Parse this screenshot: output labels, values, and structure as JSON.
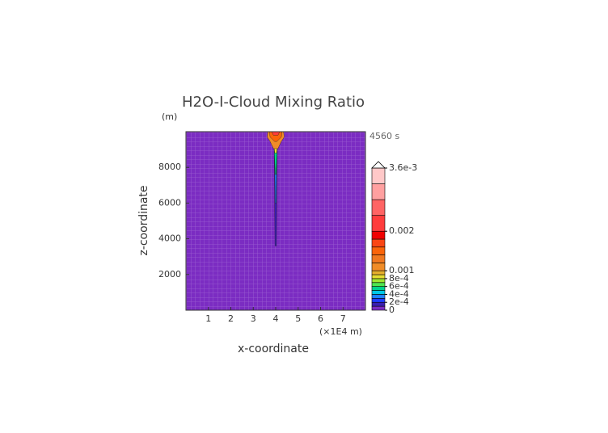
{
  "chart_data": {
    "type": "contour",
    "title": "H2O-I-Cloud Mixing Ratio",
    "x_label": "x-coordinate",
    "y_label": "z-coordinate",
    "x_unit": "(×1E4 m)",
    "y_unit": "(m)",
    "time_label": "4560 s",
    "xlim": [
      0,
      8
    ],
    "xticks": [
      1,
      2,
      3,
      4,
      5,
      6,
      7
    ],
    "ylim": [
      0,
      10000
    ],
    "yticks": [
      2000,
      4000,
      6000,
      8000
    ],
    "background_level": 0,
    "levels": [
      0,
      0.0001,
      0.0002,
      0.0003,
      0.0004,
      0.0005,
      0.0006,
      0.0007,
      0.0008,
      0.0009,
      0.001,
      0.0012,
      0.0014,
      0.0016,
      0.0018,
      0.002,
      0.0024,
      0.0028,
      0.0032,
      0.0036
    ],
    "colors": [
      "#7b2cc2",
      "#3a1eb0",
      "#1e3cff",
      "#1e82ff",
      "#00c8e6",
      "#00d28c",
      "#50e650",
      "#a0e632",
      "#e6dc32",
      "#e6af2d",
      "#f08c28",
      "#f07820",
      "#fa640a",
      "#fa4614",
      "#f00000",
      "#ff3c3c",
      "#ff6464",
      "#ffa0a0",
      "#ffc8c8"
    ],
    "colorbar_ticks": [
      0,
      {
        "value": 0.0002,
        "label": "2e-4"
      },
      {
        "value": 0.0004,
        "label": "4e-4"
      },
      {
        "value": 0.0006,
        "label": "6e-4"
      },
      {
        "value": 0.0008,
        "label": "8e-4"
      },
      0.001,
      0.002,
      {
        "value": 0.0036,
        "label": "3.6e-3"
      }
    ],
    "contours": [
      {
        "level": 0.0001,
        "x": [
          3.97,
          4.03,
          4.07,
          3.93
        ],
        "y": [
          3600,
          3600,
          9300,
          9300
        ]
      },
      {
        "level": 0.0003,
        "x": [
          3.98,
          4.02,
          4.06,
          3.94
        ],
        "y": [
          6000,
          6000,
          9300,
          9300
        ]
      },
      {
        "level": 0.0005,
        "x": [
          3.98,
          4.02,
          4.08,
          3.92
        ],
        "y": [
          7600,
          7600,
          9400,
          9400
        ]
      },
      {
        "level": 0.0008,
        "x": [
          3.96,
          4.04,
          4.12,
          3.88
        ],
        "y": [
          8800,
          8800,
          9600,
          9600
        ]
      },
      {
        "level": 0.001,
        "x": [
          3.65,
          4.35,
          4.38,
          4.25,
          4.1,
          3.9,
          3.75,
          3.62
        ],
        "y": [
          10000,
          10000,
          9700,
          9450,
          9050,
          9050,
          9450,
          9700
        ]
      },
      {
        "level": 0.0014,
        "x": [
          3.72,
          4.28,
          4.25,
          4.05,
          3.95,
          3.75
        ],
        "y": [
          10000,
          10000,
          9700,
          9450,
          9450,
          9700
        ]
      },
      {
        "level": 0.002,
        "x": [
          3.82,
          4.18,
          4.1,
          3.9
        ],
        "y": [
          10000,
          10000,
          9800,
          9800
        ]
      }
    ]
  }
}
